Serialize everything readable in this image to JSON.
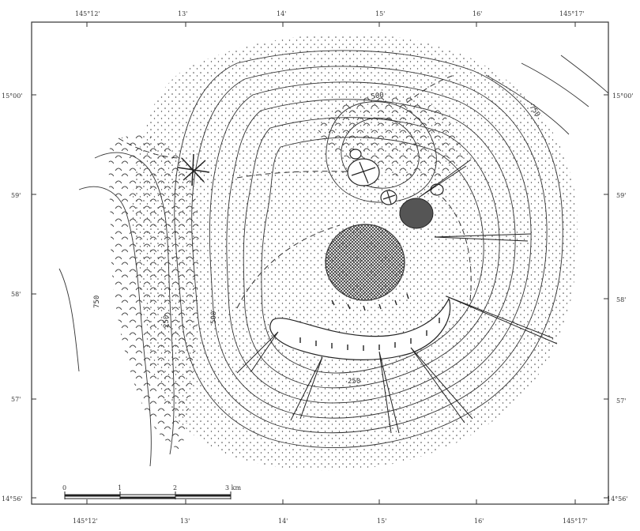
{
  "map": {
    "top_lon_labels": [
      "145°12'",
      "13'",
      "14'",
      "15'",
      "16'",
      "145°17'"
    ],
    "bottom_lon_labels": [
      "145°12'",
      "13'",
      "14'",
      "15'",
      "16'",
      "145°17'"
    ],
    "left_lat_labels": [
      "15°00'",
      "59'",
      "58'",
      "57'",
      "14°56'"
    ],
    "right_lat_labels": [
      "15°00'",
      "59'",
      "58'",
      "57'",
      "14°56'"
    ],
    "contour_labels": [
      "500",
      "750",
      "750",
      "250",
      "500",
      "250"
    ],
    "scale_bar": {
      "ticks": [
        "0",
        "1",
        "2",
        "3 km"
      ]
    },
    "colors": {
      "ink": "#333333",
      "crater": "#555555",
      "paper": "#ffffff"
    }
  }
}
